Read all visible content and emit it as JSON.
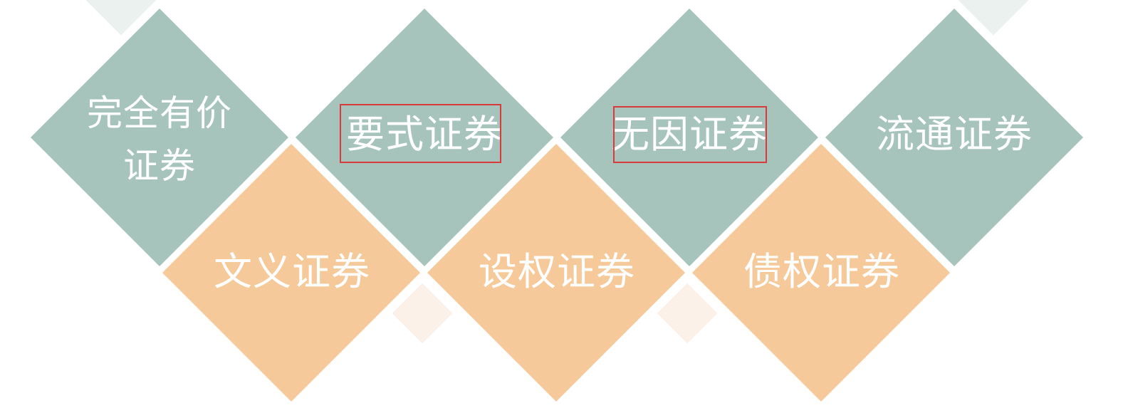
{
  "colors": {
    "background": "#ffffff",
    "teal": "#a6c3bc",
    "orange": "#f6c99a",
    "text": "#ffffff",
    "highlight": "#d93a3a",
    "ghost_teal": "#e6eeeb",
    "ghost_orange": "#fbf0e6"
  },
  "top_row": [
    {
      "line1": "完全有价",
      "line2": "证券"
    },
    {
      "label": "要式证券",
      "highlighted": true
    },
    {
      "label": "无因证券",
      "highlighted": true
    },
    {
      "label": "流通证券",
      "highlighted": false
    }
  ],
  "bottom_row": [
    {
      "label": "文义证券"
    },
    {
      "label": "设权证券"
    },
    {
      "label": "债权证券"
    }
  ]
}
